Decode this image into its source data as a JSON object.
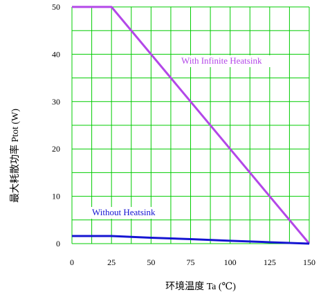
{
  "chart_data": {
    "type": "line",
    "title": "",
    "xlabel": "环境温度    Ta (℃)",
    "ylabel": "最大耗散功率    Ptot (W)",
    "xlim": [
      0,
      150
    ],
    "ylim": [
      0,
      50
    ],
    "x_ticks": [
      "0",
      "25",
      "50",
      "75",
      "100",
      "125",
      "150"
    ],
    "y_ticks": [
      "0",
      "10",
      "20",
      "30",
      "40",
      "50"
    ],
    "grid": true,
    "series": [
      {
        "name": "With Infinite Heatsink",
        "color": "#b347e8",
        "x": [
          0,
          25,
          150
        ],
        "y": [
          50,
          50,
          0
        ]
      },
      {
        "name": "Without Heatsink",
        "color": "#1414d2",
        "x": [
          0,
          25,
          50,
          75,
          100,
          125,
          150
        ],
        "y": [
          1.6,
          1.6,
          1.25,
          0.95,
          0.6,
          0.3,
          0
        ]
      }
    ],
    "colors": {
      "grid": "#00cc00",
      "axis_text": "#000000"
    }
  }
}
